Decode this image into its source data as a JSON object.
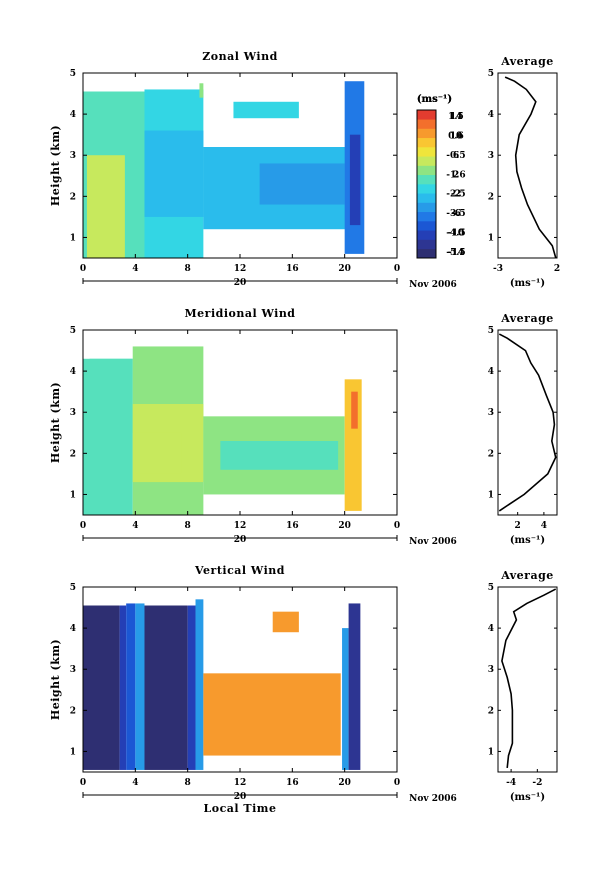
{
  "figure": {
    "xlabel": "Local Time",
    "date_label": "20",
    "month_label": "Nov 2006",
    "unit_label": "(ms⁻¹)",
    "avg_title": "Average"
  },
  "chart_data": [
    {
      "type": "heatmap",
      "title": "Zonal Wind",
      "ylabel": "Height (km)",
      "xticks": [
        "0",
        "4",
        "8",
        "12",
        "16",
        "20",
        "0"
      ],
      "xlim": [
        0,
        24
      ],
      "yticks": [
        "1",
        "2",
        "3",
        "4",
        "5"
      ],
      "ylim": [
        0.5,
        5
      ],
      "colorbar": {
        "label": "(ms⁻¹)",
        "levels": [
          -16,
          -14,
          -12,
          -10,
          -8,
          -6,
          -4,
          -2,
          0,
          2,
          4,
          6,
          8,
          10,
          12,
          14,
          16
        ],
        "tick_labels": [
          "14",
          "10",
          "6",
          "2",
          "-2",
          "-6",
          "-10",
          "-14"
        ],
        "zero_line": true
      },
      "blocks": [
        {
          "t": [
            0,
            4.7
          ],
          "h": [
            0.5,
            4.55
          ],
          "v": 1
        },
        {
          "t": [
            0.3,
            3.2
          ],
          "h": [
            0.5,
            3.0
          ],
          "v": 4
        },
        {
          "t": [
            4.7,
            9.2
          ],
          "h": [
            0.5,
            4.6
          ],
          "v": -1
        },
        {
          "t": [
            4.7,
            9.2
          ],
          "h": [
            1.5,
            3.6
          ],
          "v": -4
        },
        {
          "t": [
            8.9,
            9.2
          ],
          "h": [
            4.4,
            4.75
          ],
          "v": 2
        },
        {
          "t": [
            9.2,
            20.3
          ],
          "h": [
            1.2,
            3.2
          ],
          "v": -3
        },
        {
          "t": [
            13.5,
            20.0
          ],
          "h": [
            1.8,
            2.8
          ],
          "v": -6
        },
        {
          "t": [
            11.5,
            16.5
          ],
          "h": [
            3.9,
            4.3
          ],
          "v": -2
        },
        {
          "t": [
            20.0,
            21.5
          ],
          "h": [
            0.6,
            4.8
          ],
          "v": -8
        },
        {
          "t": [
            20.4,
            21.2
          ],
          "h": [
            1.3,
            3.5
          ],
          "v": -12
        }
      ],
      "average": {
        "xticks": [
          "-3",
          "2"
        ],
        "xlim": [
          -3,
          2
        ],
        "xlabel": "(ms⁻¹)",
        "profile": [
          [
            1.9,
            0.5
          ],
          [
            1.6,
            0.8
          ],
          [
            0.5,
            1.2
          ],
          [
            -0.5,
            1.8
          ],
          [
            -1.0,
            2.2
          ],
          [
            -1.4,
            2.6
          ],
          [
            -1.5,
            3.0
          ],
          [
            -1.2,
            3.5
          ],
          [
            -0.2,
            4.0
          ],
          [
            0.2,
            4.3
          ],
          [
            -0.6,
            4.6
          ],
          [
            -1.6,
            4.8
          ],
          [
            -2.4,
            4.9
          ]
        ]
      }
    },
    {
      "type": "heatmap",
      "title": "Meridional Wind",
      "ylabel": "Height (km)",
      "xticks": [
        "0",
        "4",
        "8",
        "12",
        "16",
        "20",
        "0"
      ],
      "xlim": [
        0,
        24
      ],
      "yticks": [
        "1",
        "2",
        "3",
        "4",
        "5"
      ],
      "ylim": [
        0.5,
        5
      ],
      "colorbar": {
        "label": "(ms⁻¹)",
        "levels": [
          -16,
          -14,
          -12,
          -10,
          -8,
          -6,
          -4,
          -2,
          0,
          2,
          4,
          6,
          8,
          10,
          12,
          14,
          16
        ],
        "tick_labels": [
          "14",
          "10",
          "6",
          "2",
          "-2",
          "-6",
          "-10",
          "-14"
        ],
        "zero_line": true
      },
      "blocks": [
        {
          "t": [
            0,
            3.8
          ],
          "h": [
            0.5,
            4.3
          ],
          "v": 0
        },
        {
          "t": [
            0.5,
            3.8
          ],
          "h": [
            2.5,
            4.3
          ],
          "v": 1
        },
        {
          "t": [
            3.8,
            9.2
          ],
          "h": [
            0.5,
            4.6
          ],
          "v": 2
        },
        {
          "t": [
            3.8,
            9.2
          ],
          "h": [
            1.3,
            3.2
          ],
          "v": 4
        },
        {
          "t": [
            4.0,
            7.5
          ],
          "h": [
            1.5,
            2.5
          ],
          "v": 5
        },
        {
          "t": [
            9.2,
            20.0
          ],
          "h": [
            1.0,
            2.9
          ],
          "v": 2
        },
        {
          "t": [
            10.5,
            19.5
          ],
          "h": [
            1.6,
            2.3
          ],
          "v": 1
        },
        {
          "t": [
            20.0,
            21.3
          ],
          "h": [
            0.6,
            3.8
          ],
          "v": 8
        },
        {
          "t": [
            20.5,
            21.0
          ],
          "h": [
            2.6,
            3.5
          ],
          "v": 12
        }
      ],
      "average": {
        "xticks": [
          "2",
          "4"
        ],
        "xlim": [
          0.5,
          5
        ],
        "xlabel": "(ms⁻¹)",
        "profile": [
          [
            0.6,
            0.6
          ],
          [
            2.5,
            1.0
          ],
          [
            4.3,
            1.5
          ],
          [
            4.9,
            1.9
          ],
          [
            4.6,
            2.3
          ],
          [
            4.8,
            2.7
          ],
          [
            4.7,
            3.0
          ],
          [
            4.2,
            3.4
          ],
          [
            3.6,
            3.9
          ],
          [
            3.0,
            4.2
          ],
          [
            2.6,
            4.5
          ],
          [
            1.2,
            4.8
          ],
          [
            0.6,
            4.9
          ]
        ]
      }
    },
    {
      "type": "heatmap",
      "title": "Vertical Wind",
      "ylabel": "Height (km)",
      "xticks": [
        "0",
        "4",
        "8",
        "12",
        "16",
        "20",
        "0"
      ],
      "xlim": [
        0,
        24
      ],
      "yticks": [
        "1",
        "2",
        "3",
        "4",
        "5"
      ],
      "ylim": [
        0.5,
        5
      ],
      "colorbar": {
        "label": "(ms⁻¹)",
        "levels": [
          -6.0,
          -5.5,
          -5.0,
          -4.5,
          -4.0,
          -3.5,
          -3.0,
          -2.5,
          -2.0,
          -1.5,
          -1.0,
          -0.5,
          0.0,
          0.5,
          1.0,
          1.5,
          2.0
        ],
        "tick_labels": [
          "1.5",
          "0.6",
          "-0.5",
          "-1.6",
          "-2.5",
          "-3.5",
          "-4.5",
          "-5.5"
        ],
        "zero_line": false
      },
      "blocks": [
        {
          "t": [
            0,
            2.8
          ],
          "h": [
            0.55,
            4.55
          ],
          "v": -5.8
        },
        {
          "t": [
            2.8,
            3.3
          ],
          "h": [
            0.55,
            4.55
          ],
          "v": -4.9
        },
        {
          "t": [
            3.3,
            4.0
          ],
          "h": [
            0.55,
            4.6
          ],
          "v": -4.2
        },
        {
          "t": [
            4.0,
            4.7
          ],
          "h": [
            0.55,
            4.6
          ],
          "v": -3.3
        },
        {
          "t": [
            4.7,
            8.0
          ],
          "h": [
            0.55,
            4.55
          ],
          "v": -5.8
        },
        {
          "t": [
            8.0,
            8.6
          ],
          "h": [
            0.55,
            4.55
          ],
          "v": -5.0
        },
        {
          "t": [
            8.6,
            9.2
          ],
          "h": [
            0.55,
            4.7
          ],
          "v": -3.1
        },
        {
          "t": [
            9.2,
            19.7
          ],
          "h": [
            0.9,
            2.9
          ],
          "v": 0.8
        },
        {
          "t": [
            14.5,
            16.5
          ],
          "h": [
            3.9,
            4.4
          ],
          "v": 0.8
        },
        {
          "t": [
            19.8,
            20.3
          ],
          "h": [
            0.55,
            4.0
          ],
          "v": -3.4
        },
        {
          "t": [
            20.3,
            21.2
          ],
          "h": [
            0.55,
            4.6
          ],
          "v": -5.4
        }
      ],
      "average": {
        "xticks": [
          "-4",
          "-2"
        ],
        "xlim": [
          -5,
          -0.5
        ],
        "xlabel": "(ms⁻¹)",
        "profile": [
          [
            -4.3,
            0.6
          ],
          [
            -4.2,
            0.9
          ],
          [
            -3.9,
            1.2
          ],
          [
            -3.9,
            1.6
          ],
          [
            -3.9,
            2.0
          ],
          [
            -4.0,
            2.4
          ],
          [
            -4.3,
            2.8
          ],
          [
            -4.7,
            3.2
          ],
          [
            -4.4,
            3.7
          ],
          [
            -3.6,
            4.2
          ],
          [
            -3.8,
            4.4
          ],
          [
            -2.8,
            4.6
          ],
          [
            -1.5,
            4.8
          ],
          [
            -0.6,
            4.95
          ]
        ]
      }
    }
  ]
}
